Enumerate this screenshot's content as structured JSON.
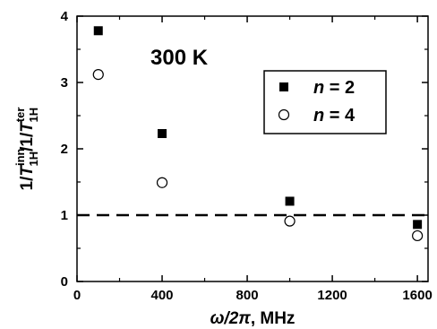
{
  "chart_data": {
    "type": "scatter",
    "annotation": "300 K",
    "xlabel": {
      "omega": "ω",
      "slash": "/2",
      "pi": "π",
      "rest": ", MHz"
    },
    "ylabel": {
      "one_a": "1/",
      "t_a": "T",
      "sup_a": "inn",
      "sub_a": "1H",
      "one_b": "/1/",
      "t_b": "T",
      "sup_b": "ter",
      "sub_b": "1H"
    },
    "xlim": [
      0,
      1650
    ],
    "ylim": [
      0,
      4
    ],
    "xticks": [
      0,
      400,
      800,
      1200,
      1600
    ],
    "yticks": [
      0,
      1,
      2,
      3,
      4
    ],
    "reference_line": {
      "y": 1,
      "style": "dashed"
    },
    "legend_position": "top-right",
    "series": [
      {
        "name": "n = 2",
        "legend": {
          "var": "n",
          "rest": " = 2"
        },
        "marker": "filled-square",
        "color": "#000000",
        "points": [
          {
            "x": 100,
            "y": 3.78
          },
          {
            "x": 400,
            "y": 2.23
          },
          {
            "x": 1000,
            "y": 1.21
          },
          {
            "x": 1600,
            "y": 0.86
          }
        ]
      },
      {
        "name": "n = 4",
        "legend": {
          "var": "n",
          "rest": " = 4"
        },
        "marker": "open-circle",
        "color": "#000000",
        "points": [
          {
            "x": 100,
            "y": 3.12
          },
          {
            "x": 400,
            "y": 1.49
          },
          {
            "x": 1000,
            "y": 0.91
          },
          {
            "x": 1600,
            "y": 0.69
          }
        ]
      }
    ]
  }
}
